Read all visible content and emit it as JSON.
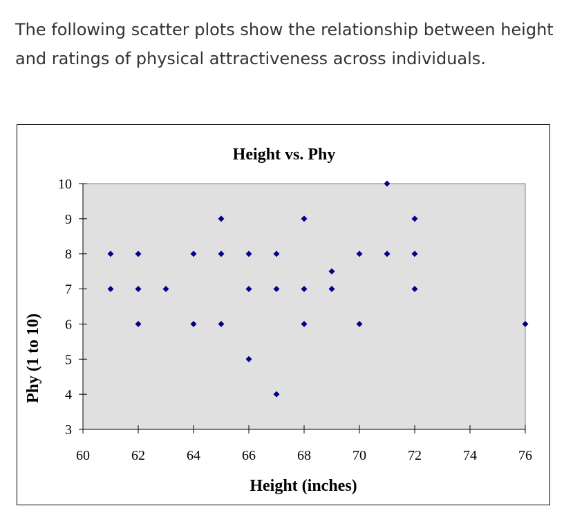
{
  "intro": {
    "text": "The following scatter plots show the relationship between height and ratings of physical attractiveness across individuals."
  },
  "chart_data": {
    "type": "scatter",
    "title": "Height vs. Phy",
    "xlabel": "Height (inches)",
    "ylabel": "Phy (1 to 10)",
    "xlim": [
      60,
      76
    ],
    "ylim": [
      3,
      10
    ],
    "xticks": [
      60,
      62,
      64,
      66,
      68,
      70,
      72,
      74,
      76
    ],
    "yticks": [
      3,
      4,
      5,
      6,
      7,
      8,
      9,
      10
    ],
    "grid": false,
    "legend": "none",
    "plot_bg": "#e0e0e0",
    "marker_color": "#00008b",
    "points": [
      {
        "x": 61,
        "y": 8
      },
      {
        "x": 61,
        "y": 7
      },
      {
        "x": 62,
        "y": 8
      },
      {
        "x": 62,
        "y": 7
      },
      {
        "x": 62,
        "y": 6
      },
      {
        "x": 63,
        "y": 7
      },
      {
        "x": 64,
        "y": 8
      },
      {
        "x": 64,
        "y": 6
      },
      {
        "x": 65,
        "y": 9
      },
      {
        "x": 65,
        "y": 8
      },
      {
        "x": 65,
        "y": 6
      },
      {
        "x": 66,
        "y": 8
      },
      {
        "x": 66,
        "y": 7
      },
      {
        "x": 66,
        "y": 5
      },
      {
        "x": 67,
        "y": 8
      },
      {
        "x": 67,
        "y": 7
      },
      {
        "x": 67,
        "y": 4
      },
      {
        "x": 68,
        "y": 9
      },
      {
        "x": 68,
        "y": 7
      },
      {
        "x": 68,
        "y": 6
      },
      {
        "x": 69,
        "y": 7.5
      },
      {
        "x": 69,
        "y": 7
      },
      {
        "x": 70,
        "y": 8
      },
      {
        "x": 70,
        "y": 6
      },
      {
        "x": 71,
        "y": 10
      },
      {
        "x": 71,
        "y": 8
      },
      {
        "x": 72,
        "y": 9
      },
      {
        "x": 72,
        "y": 8
      },
      {
        "x": 72,
        "y": 7
      },
      {
        "x": 76,
        "y": 6
      }
    ]
  }
}
